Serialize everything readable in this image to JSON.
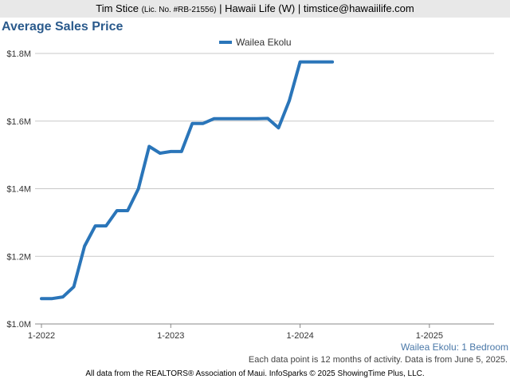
{
  "header": {
    "agent": "Tim Stice",
    "license": "(Lic. No. #RB-21556)",
    "rest": "| Hawaii Life (W) | timstice@hawaiilife.com"
  },
  "chart_title": "Average Sales Price",
  "subtitle": "Wailea Ekolu: 1 Bedroom",
  "note": "Each data point is 12 months of activity. Data is from June 5, 2025.",
  "footer": "All data from the REALTORS® Association of Maui. InfoSparks © 2025 ShowingTime Plus, LLC.",
  "chart_data": {
    "type": "line",
    "title": "Average Sales Price",
    "xlabel": "",
    "ylabel": "",
    "x_ticks": [
      "1-2022",
      "1-2023",
      "1-2024",
      "1-2025"
    ],
    "y_ticks": [
      "$1.0M",
      "$1.2M",
      "$1.4M",
      "$1.6M",
      "$1.8M"
    ],
    "ylim": [
      1000000,
      1800000
    ],
    "xlim": [
      "2022-01",
      "2025-07"
    ],
    "grid": true,
    "legend": "top-center",
    "series": [
      {
        "name": "Wailea Ekolu",
        "color": "#2a75b9",
        "x": [
          "2022-01",
          "2022-02",
          "2022-03",
          "2022-04",
          "2022-05",
          "2022-06",
          "2022-07",
          "2022-08",
          "2022-09",
          "2022-10",
          "2022-11",
          "2022-12",
          "2023-01",
          "2023-02",
          "2023-03",
          "2023-04",
          "2023-05",
          "2023-06",
          "2023-07",
          "2023-08",
          "2023-09",
          "2023-10",
          "2023-11",
          "2023-12",
          "2024-01",
          "2024-02",
          "2024-03",
          "2024-04"
        ],
        "values": [
          1075000,
          1075000,
          1080000,
          1110000,
          1230000,
          1290000,
          1290000,
          1335000,
          1335000,
          1400000,
          1525000,
          1505000,
          1510000,
          1510000,
          1593000,
          1593000,
          1607000,
          1607000,
          1607000,
          1607000,
          1607000,
          1608000,
          1580000,
          1660000,
          1775000,
          1775000,
          1775000,
          1775000
        ]
      }
    ]
  }
}
